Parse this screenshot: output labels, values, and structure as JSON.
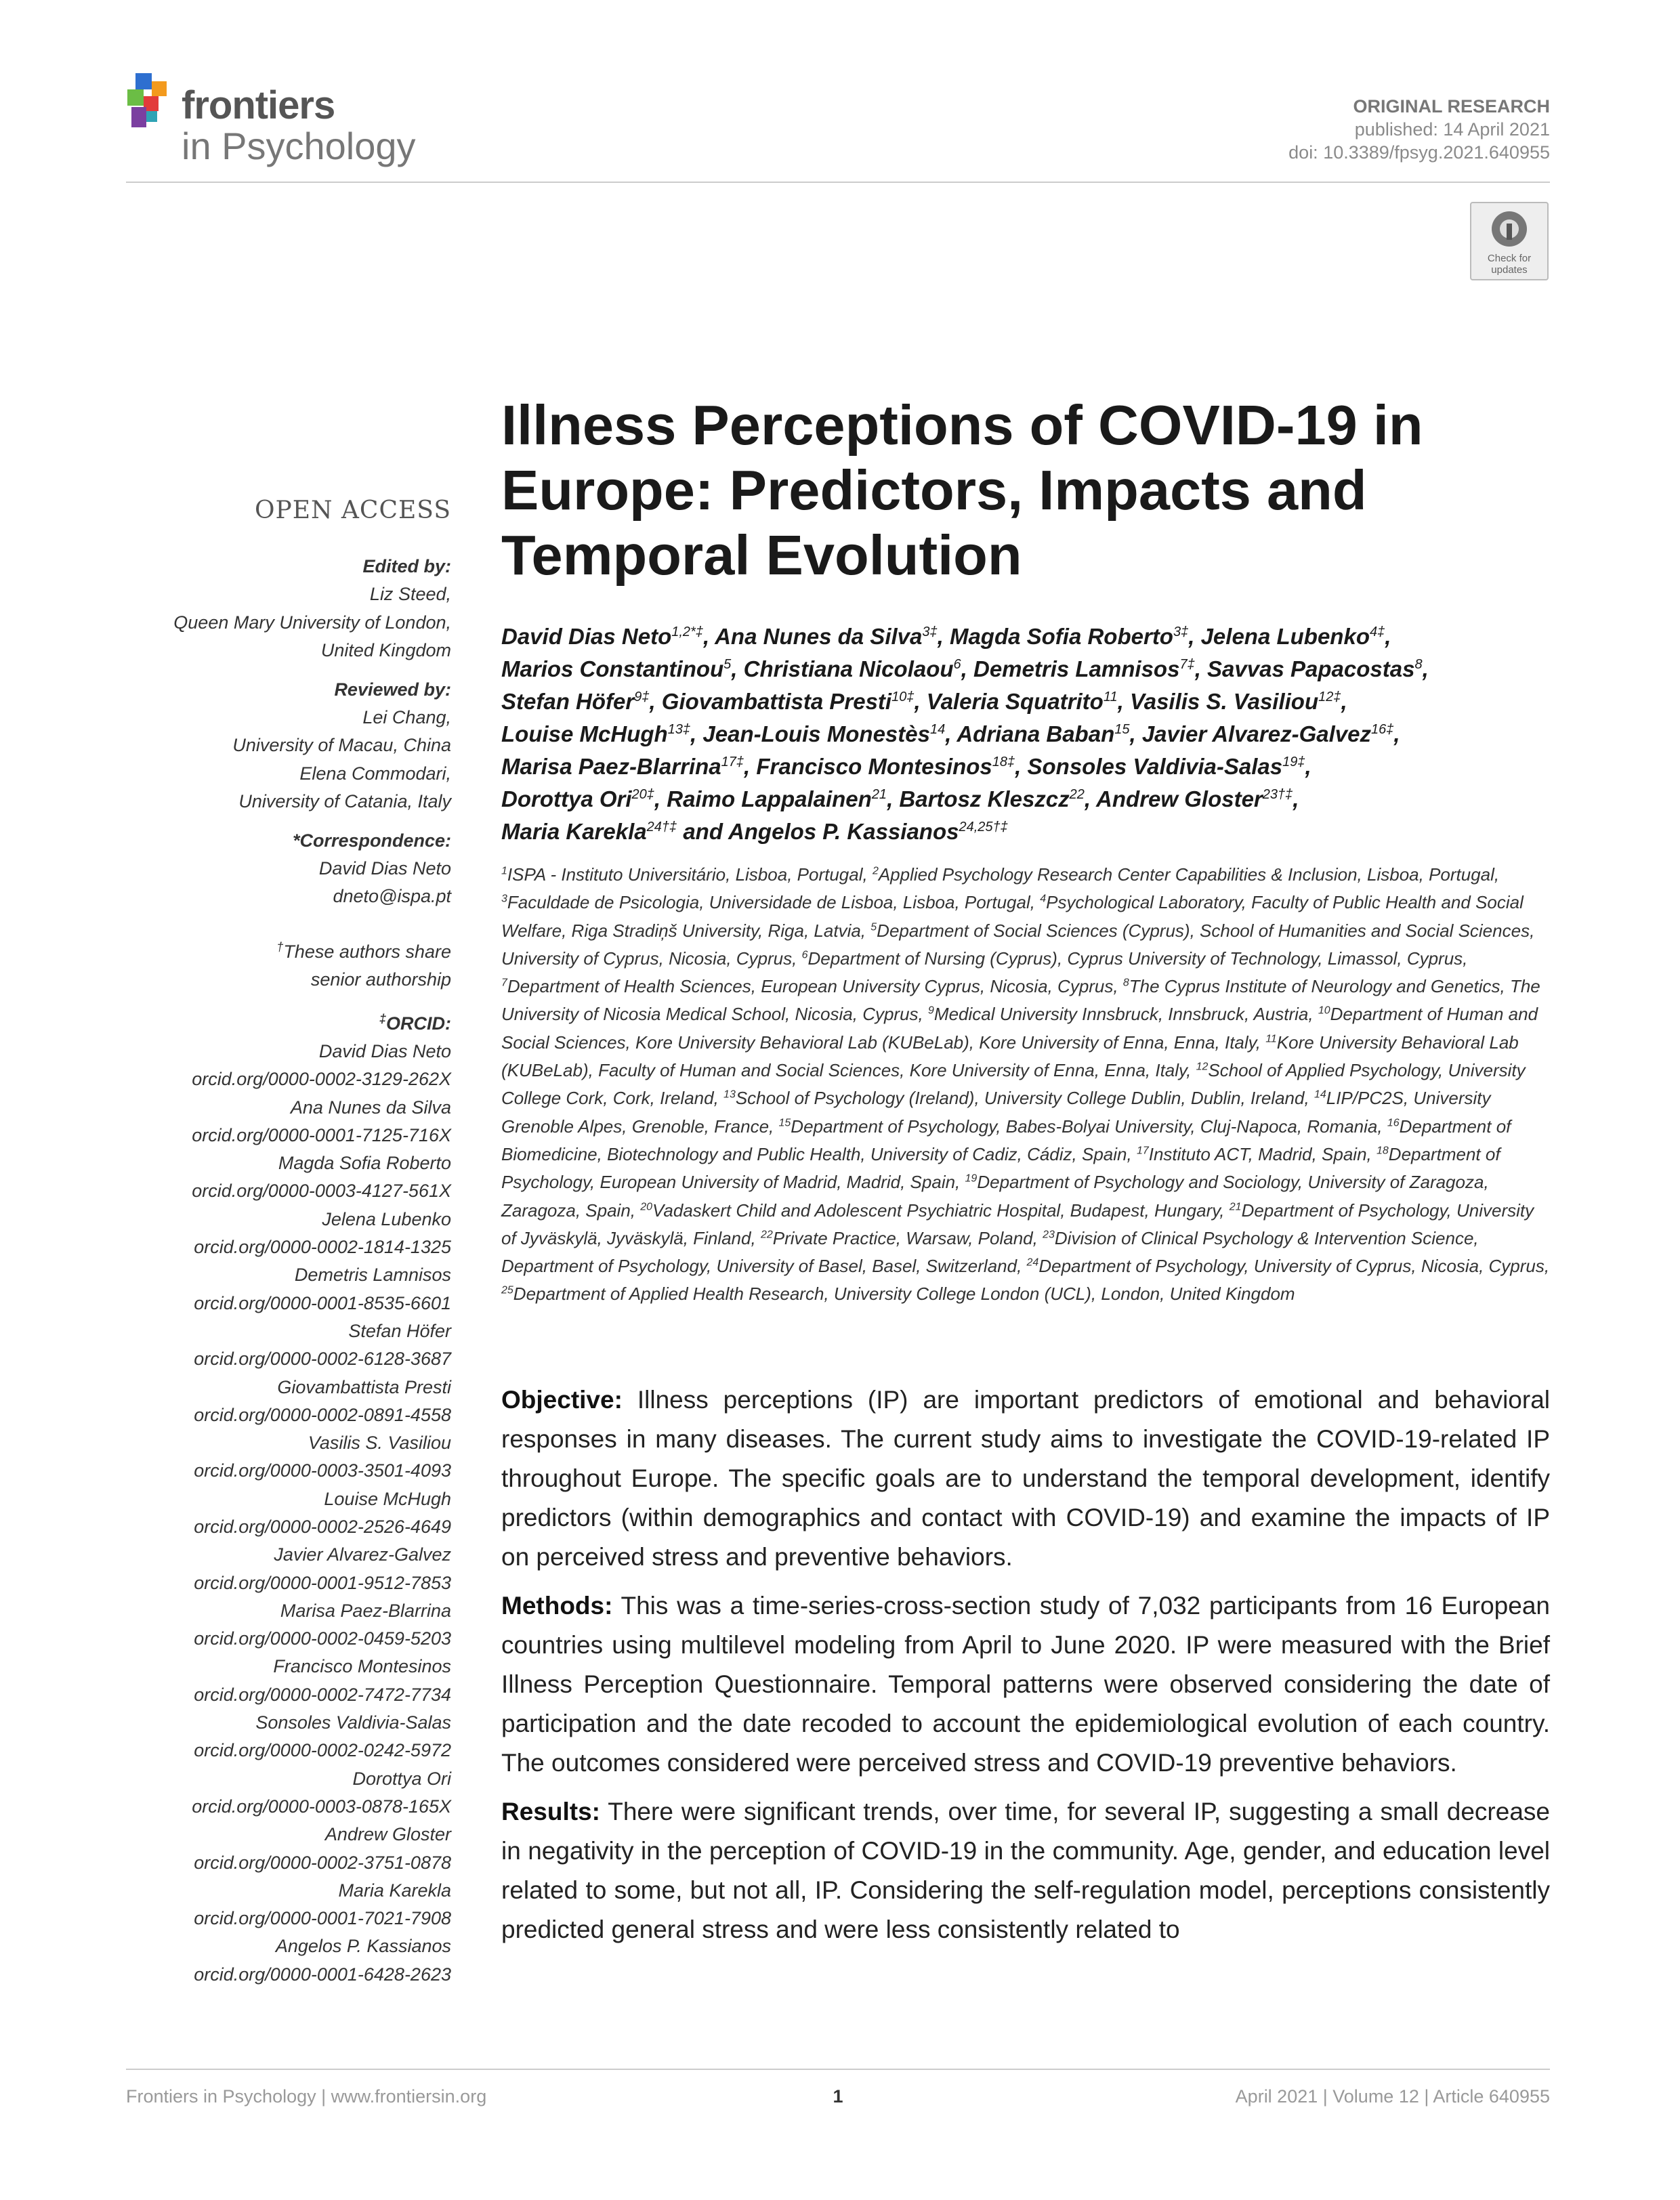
{
  "header": {
    "journal": "frontiers",
    "journal_sub": "in Psychology",
    "article_type": "ORIGINAL RESEARCH",
    "published": "published: 14 April 2021",
    "doi": "doi: 10.3389/fpsyg.2021.640955",
    "badge": [
      "Check for",
      "updates"
    ]
  },
  "title": [
    "Illness Perceptions of COVID-19 in",
    "Europe: Predictors, Impacts and",
    "Temporal Evolution"
  ],
  "sidebar": {
    "open_access": "OPEN ACCESS",
    "edited_by": {
      "heading": "Edited by:",
      "lines": [
        "Liz Steed,",
        "Queen Mary University of London,",
        "United Kingdom"
      ]
    },
    "reviewed_by": {
      "heading": "Reviewed by:",
      "lines": [
        "Lei Chang,",
        "University of Macau, China",
        "Elena Commodari,",
        "University of Catania, Italy"
      ]
    },
    "correspondence": {
      "heading": "*Correspondence:",
      "lines": [
        "David Dias Neto",
        "dneto@ispa.pt"
      ]
    },
    "note": {
      "mark": "†",
      "lines": [
        "These authors share",
        "senior authorship"
      ]
    },
    "orcid": {
      "mark": "‡",
      "heading": "ORCID:",
      "entries": [
        {
          "name": "David Dias Neto",
          "id": "orcid.org/0000-0002-3129-262X"
        },
        {
          "name": "Ana Nunes da Silva",
          "id": "orcid.org/0000-0001-7125-716X"
        },
        {
          "name": "Magda Sofia Roberto",
          "id": "orcid.org/0000-0003-4127-561X"
        },
        {
          "name": "Jelena Lubenko",
          "id": "orcid.org/0000-0002-1814-1325"
        },
        {
          "name": "Demetris Lamnisos",
          "id": "orcid.org/0000-0001-8535-6601"
        },
        {
          "name": "Stefan Höfer",
          "id": "orcid.org/0000-0002-6128-3687"
        },
        {
          "name": "Giovambattista Presti",
          "id": "orcid.org/0000-0002-0891-4558"
        },
        {
          "name": "Vasilis S. Vasiliou",
          "id": "orcid.org/0000-0003-3501-4093"
        },
        {
          "name": "Louise McHugh",
          "id": "orcid.org/0000-0002-2526-4649"
        },
        {
          "name": "Javier Alvarez-Galvez",
          "id": "orcid.org/0000-0001-9512-7853"
        },
        {
          "name": "Marisa Paez-Blarrina",
          "id": "orcid.org/0000-0002-0459-5203"
        },
        {
          "name": "Francisco Montesinos",
          "id": "orcid.org/0000-0002-7472-7734"
        },
        {
          "name": "Sonsoles Valdivia-Salas",
          "id": "orcid.org/0000-0002-0242-5972"
        },
        {
          "name": "Dorottya Ori",
          "id": "orcid.org/0000-0003-0878-165X"
        },
        {
          "name": "Andrew Gloster",
          "id": "orcid.org/0000-0002-3751-0878"
        },
        {
          "name": "Maria Karekla",
          "id": "orcid.org/0000-0001-7021-7908"
        },
        {
          "name": "Angelos P. Kassianos",
          "id": "orcid.org/0000-0001-6428-2623"
        }
      ]
    }
  },
  "authors": [
    [
      {
        "name": "David Dias Neto",
        "sup": "1,2*‡",
        "sep": ","
      },
      {
        "name": "Ana Nunes da Silva",
        "sup": "3‡",
        "sep": ","
      },
      {
        "name": "Magda Sofia Roberto",
        "sup": "3‡",
        "sep": ","
      },
      {
        "name": "Jelena Lubenko",
        "sup": "4‡",
        "sep": ","
      }
    ],
    [
      {
        "name": "Marios Constantinou",
        "sup": "5",
        "sep": ","
      },
      {
        "name": "Christiana Nicolaou",
        "sup": "6",
        "sep": ","
      },
      {
        "name": "Demetris Lamnisos",
        "sup": "7‡",
        "sep": ","
      },
      {
        "name": "Savvas Papacostas",
        "sup": "8",
        "sep": ","
      }
    ],
    [
      {
        "name": "Stefan Höfer",
        "sup": "9‡",
        "sep": ","
      },
      {
        "name": "Giovambattista Presti",
        "sup": "10‡",
        "sep": ","
      },
      {
        "name": "Valeria Squatrito",
        "sup": "11",
        "sep": ","
      },
      {
        "name": "Vasilis S. Vasiliou",
        "sup": "12‡",
        "sep": ","
      }
    ],
    [
      {
        "name": "Louise McHugh",
        "sup": "13‡",
        "sep": ","
      },
      {
        "name": "Jean-Louis Monestès",
        "sup": "14",
        "sep": ","
      },
      {
        "name": "Adriana Baban",
        "sup": "15",
        "sep": ","
      },
      {
        "name": "Javier Alvarez-Galvez",
        "sup": "16‡",
        "sep": ","
      }
    ],
    [
      {
        "name": "Marisa Paez-Blarrina",
        "sup": "17‡",
        "sep": ","
      },
      {
        "name": "Francisco Montesinos",
        "sup": "18‡",
        "sep": ","
      },
      {
        "name": "Sonsoles Valdivia-Salas",
        "sup": "19‡",
        "sep": ","
      }
    ],
    [
      {
        "name": "Dorottya Ori",
        "sup": "20‡",
        "sep": ","
      },
      {
        "name": "Raimo Lappalainen",
        "sup": "21",
        "sep": ","
      },
      {
        "name": "Bartosz Kleszcz",
        "sup": "22",
        "sep": ","
      },
      {
        "name": "Andrew Gloster",
        "sup": "23†‡",
        "sep": ","
      }
    ],
    [
      {
        "name": "Maria Karekla",
        "sup": "24†‡",
        "sep": "and"
      },
      {
        "name": "Angelos P. Kassianos",
        "sup": "24,25†‡"
      }
    ]
  ],
  "affiliations": [
    {
      "num": "1",
      "text": "ISPA - Instituto Universitário, Lisboa, Portugal,"
    },
    {
      "num": "2",
      "text": "Applied Psychology Research Center Capabilities & Inclusion, Lisboa, Portugal,"
    },
    {
      "num": "3",
      "text": "Faculdade de Psicologia, Universidade de Lisboa, Lisboa, Portugal,"
    },
    {
      "num": "4",
      "text": "Psychological Laboratory, Faculty of Public Health and Social Welfare, Riga Stradiņš University, Riga, Latvia,"
    },
    {
      "num": "5",
      "text": "Department of Social Sciences (Cyprus), School of Humanities and Social Sciences, University of Cyprus, Nicosia, Cyprus,"
    },
    {
      "num": "6",
      "text": "Department of Nursing (Cyprus), Cyprus University of Technology, Limassol, Cyprus,"
    },
    {
      "num": "7",
      "text": "Department of Health Sciences, European University Cyprus, Nicosia, Cyprus,"
    },
    {
      "num": "8",
      "text": "The Cyprus Institute of Neurology and Genetics, The University of Nicosia Medical School, Nicosia, Cyprus,"
    },
    {
      "num": "9",
      "text": "Medical University Innsbruck, Innsbruck, Austria,"
    },
    {
      "num": "10",
      "text": "Department of Human and Social Sciences, Kore University Behavioral Lab (KUBeLab), Kore University of Enna, Enna, Italy,"
    },
    {
      "num": "11",
      "text": "Kore University Behavioral Lab (KUBeLab), Faculty of Human and Social Sciences, Kore University of Enna, Enna, Italy,"
    },
    {
      "num": "12",
      "text": "School of Applied Psychology, University College Cork, Cork, Ireland,"
    },
    {
      "num": "13",
      "text": "School of Psychology (Ireland), University College Dublin, Dublin, Ireland,"
    },
    {
      "num": "14",
      "text": "LIP/PC2S, University Grenoble Alpes, Grenoble, France,"
    },
    {
      "num": "15",
      "text": "Department of Psychology, Babes-Bolyai University, Cluj-Napoca, Romania,"
    },
    {
      "num": "16",
      "text": "Department of Biomedicine, Biotechnology and Public Health, University of Cadiz, Cádiz, Spain,"
    },
    {
      "num": "17",
      "text": "Instituto ACT, Madrid, Spain,"
    },
    {
      "num": "18",
      "text": "Department of Psychology, European University of Madrid, Madrid, Spain,"
    },
    {
      "num": "19",
      "text": "Department of Psychology and Sociology, University of Zaragoza, Zaragoza, Spain,"
    },
    {
      "num": "20",
      "text": "Vadaskert Child and Adolescent Psychiatric Hospital, Budapest, Hungary,"
    },
    {
      "num": "21",
      "text": "Department of Psychology, University of Jyväskylä, Jyväskylä, Finland,"
    },
    {
      "num": "22",
      "text": "Private Practice, Warsaw, Poland,"
    },
    {
      "num": "23",
      "text": "Division of Clinical Psychology & Intervention Science, Department of Psychology, University of Basel, Basel, Switzerland,"
    },
    {
      "num": "24",
      "text": "Department of Psychology, University of Cyprus, Nicosia, Cyprus,"
    },
    {
      "num": "25",
      "text": "Department of Applied Health Research, University College London (UCL), London, United Kingdom"
    }
  ],
  "abstract": [
    {
      "label": "Objective:",
      "text": "Illness perceptions (IP) are important predictors of emotional and behavioral responses in many diseases. The current study aims to investigate the COVID-19-related IP throughout Europe. The specific goals are to understand the temporal development, identify predictors (within demographics and contact with COVID-19) and examine the impacts of IP on perceived stress and preventive behaviors."
    },
    {
      "label": "Methods:",
      "text": "This was a time-series-cross-section study of 7,032 participants from 16 European countries using multilevel modeling from April to June 2020. IP were measured with the Brief Illness Perception Questionnaire. Temporal patterns were observed considering the date of participation and the date recoded to account the epidemiological evolution of each country. The outcomes considered were perceived stress and COVID-19 preventive behaviors."
    },
    {
      "label": "Results:",
      "text": "There were significant trends, over time, for several IP, suggesting a small decrease in negativity in the perception of COVID-19 in the community. Age, gender, and education level related to some, but not all, IP. Considering the self-regulation model, perceptions consistently predicted general stress and were less consistently related to"
    }
  ],
  "footer": {
    "left": "Frontiers in Psychology | www.frontiersin.org",
    "page": "1",
    "right": "April 2021 | Volume 12 | Article 640955"
  }
}
